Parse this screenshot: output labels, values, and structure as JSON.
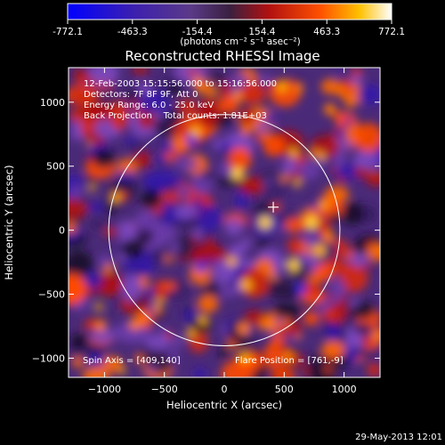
{
  "colorbar": {
    "ticks": [
      "-772.1",
      "-463.3",
      "-154.4",
      "154.4",
      "463.3",
      "772.1"
    ],
    "tick_values": [
      -772.1,
      -463.3,
      -154.4,
      154.4,
      463.3,
      772.1
    ],
    "range": [
      -772.1,
      772.1
    ],
    "unit_label": "(photons cm⁻² s⁻¹ asec⁻²)"
  },
  "chart_data": {
    "type": "heatmap",
    "title": "Reconstructed RHESSI Image",
    "xlabel": "Heliocentric X (arcsec)",
    "ylabel": "Heliocentric Y (arcsec)",
    "xlim": [
      -1300,
      1300
    ],
    "ylim": [
      -1150,
      1270
    ],
    "xticks": [
      -1000,
      -500,
      0,
      500,
      1000
    ],
    "yticks": [
      -1000,
      -500,
      0,
      500,
      1000
    ],
    "xtick_labels": [
      "−1000",
      "−500",
      "0",
      "500",
      "1000"
    ],
    "ytick_labels": [
      "−1000",
      "−500",
      "0",
      "500",
      "1000"
    ],
    "solar_disk": {
      "center": [
        0,
        0
      ],
      "radius_arcsec": 965
    },
    "marker": {
      "type": "cross",
      "x": 409,
      "y": 180
    },
    "info_lines": [
      "12-Feb-2003 15:15:56.000 to 15:16:56.000",
      "Detectors: 7F 8F 9F, Att 0",
      "Energy Range: 6.0 - 25.0 keV",
      "Back Projection    Total counts: 1.81E+03"
    ],
    "spin_axis": "Spin Axis = [409,140]",
    "flare_position": "Flare Position = [761,-9]",
    "colors": {
      "negative": "#2020ff",
      "mid": "#5b3896",
      "positive": "#ff2200",
      "max": "#ffffff"
    }
  },
  "timestamp": "29-May-2013 12:01"
}
